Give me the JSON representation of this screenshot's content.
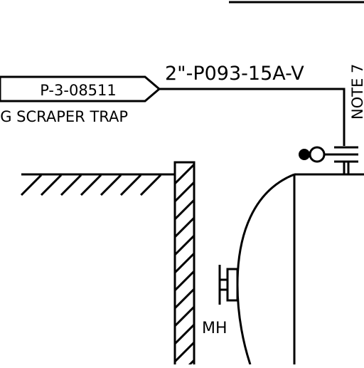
{
  "drawing": {
    "offpage_connector_label": "P-3-08511",
    "offpage_connector_description": "IG SCRAPER TRAP",
    "line_number": "2\"-P093-15A-V",
    "note_label": "NOTE 7",
    "manhole_label": "MH"
  },
  "colors": {
    "ink": "#000000",
    "paper": "#ffffff"
  }
}
